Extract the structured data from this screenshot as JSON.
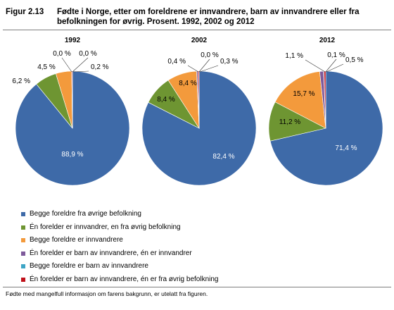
{
  "figure": {
    "number": "Figur 2.13",
    "title": "Fødte i Norge, etter om foreldrene er innvandrere, barn av innvandrere eller fra befolkningen for øvrig. Prosent. 1992, 2002 og 2012"
  },
  "chart_data": [
    {
      "type": "pie",
      "title": "1992",
      "labels": [
        "Begge foreldre fra øvrige befolkning",
        "Én forelder er innvandrer, en fra øvrig befolkning",
        "Begge foreldre er innvandrere",
        "Én forelder er barn av innvandrere, én er innvandrer",
        "Begge foreldre er barn av innvandrere",
        "Én forelder er barn av innvandrere, én er fra øvrig befolkning"
      ],
      "values": [
        88.9,
        6.2,
        4.5,
        0.0,
        0.0,
        0.2
      ],
      "value_labels": [
        "88,9 %",
        "6,2 %",
        "4,5 %",
        "0,0 %",
        "0,0 %",
        "0,2 %"
      ]
    },
    {
      "type": "pie",
      "title": "2002",
      "labels": [
        "Begge foreldre fra øvrige befolkning",
        "Én forelder er innvandrer, en fra øvrig befolkning",
        "Begge foreldre er innvandrere",
        "Én forelder er barn av innvandrere, én er innvandrer",
        "Begge foreldre er barn av innvandrere",
        "Én forelder er barn av innvandrere, én er fra øvrig befolkning"
      ],
      "values": [
        82.4,
        8.4,
        8.4,
        0.4,
        0.0,
        0.3
      ],
      "value_labels": [
        "82,4 %",
        "8,4 %",
        "8,4 %",
        "0,4 %",
        "0,0 %",
        "0,3 %"
      ]
    },
    {
      "type": "pie",
      "title": "2012",
      "labels": [
        "Begge foreldre fra øvrige befolkning",
        "Én forelder er innvandrer, en fra øvrig befolkning",
        "Begge foreldre er innvandrere",
        "Én forelder er barn av innvandrere, én er innvandrer",
        "Begge foreldre er barn av innvandrere",
        "Én forelder er barn av innvandrere, én er fra øvrig befolkning"
      ],
      "values": [
        71.4,
        11.2,
        15.7,
        1.1,
        0.1,
        0.5
      ],
      "value_labels": [
        "71,4 %",
        "11,2 %",
        "15,7 %",
        "1,1 %",
        "0,1 %",
        "0,5 %"
      ]
    }
  ],
  "legend": {
    "placement": "bottom",
    "items": [
      {
        "label": "Begge foreldre fra øvrige befolkning",
        "color": "#3E6AA8"
      },
      {
        "label": "Én forelder er innvandrer, en fra øvrig befolkning",
        "color": "#6E9532"
      },
      {
        "label": "Begge foreldre er innvandrere",
        "color": "#F39A3C"
      },
      {
        "label": "Én forelder er barn av innvandrere, én er innvandrer",
        "color": "#7E5A9B"
      },
      {
        "label": "Begge foreldre er barn av innvandrere",
        "color": "#3EA5C6"
      },
      {
        "label": "Én forelder er barn av innvandrere, én er fra øvrig befolkning",
        "color": "#C0101A"
      }
    ]
  },
  "footnote": "Fødte med mangelfull informasjon om farens bakgrunn, er utelatt fra figuren."
}
